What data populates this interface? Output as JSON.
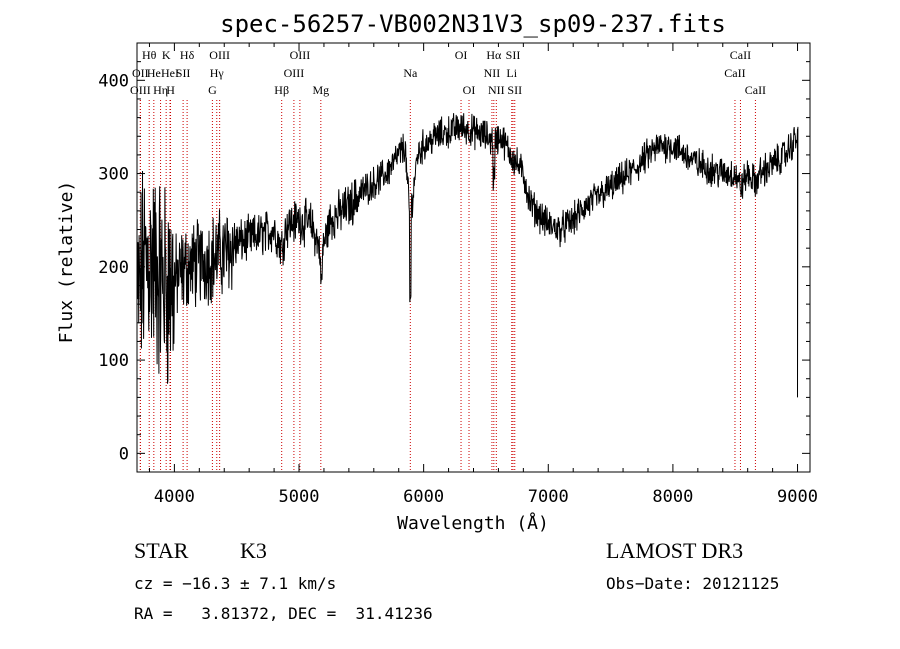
{
  "chart_data": {
    "type": "line",
    "title": "spec-56257-VB002N31V3_sp09-237.fits",
    "xlabel": "Wavelength (Å)",
    "ylabel": "Flux (relative)",
    "xlim": [
      3700,
      9100
    ],
    "ylim": [
      -20,
      440
    ],
    "xticks": [
      4000,
      5000,
      6000,
      7000,
      8000,
      9000
    ],
    "yticks": [
      0,
      100,
      200,
      300,
      400
    ],
    "xtick_labels": [
      "4000",
      "5000",
      "6000",
      "7000",
      "8000",
      "9000"
    ],
    "ytick_labels": [
      "0",
      "100",
      "200",
      "300",
      "400"
    ],
    "spectrum": {
      "x": [
        3700,
        3750,
        3800,
        3850,
        3900,
        3950,
        4000,
        4100,
        4200,
        4300,
        4400,
        4500,
        4600,
        4700,
        4800,
        4860,
        4900,
        5000,
        5100,
        5180,
        5250,
        5300,
        5400,
        5500,
        5600,
        5700,
        5750,
        5800,
        5850,
        5890,
        5950,
        6000,
        6100,
        6200,
        6300,
        6400,
        6500,
        6560,
        6620,
        6700,
        6800,
        6850,
        6900,
        7000,
        7100,
        7200,
        7300,
        7400,
        7500,
        7600,
        7700,
        7800,
        7900,
        8000,
        8100,
        8200,
        8300,
        8400,
        8500,
        8542,
        8600,
        8662,
        8700,
        8800,
        8900,
        8950,
        9000
      ],
      "y": [
        150,
        200,
        210,
        195,
        185,
        180,
        185,
        200,
        205,
        210,
        215,
        225,
        230,
        235,
        240,
        220,
        245,
        250,
        245,
        215,
        250,
        255,
        265,
        280,
        290,
        300,
        310,
        320,
        330,
        250,
        320,
        330,
        340,
        345,
        350,
        345,
        340,
        335,
        340,
        320,
        300,
        270,
        260,
        245,
        240,
        250,
        265,
        275,
        285,
        295,
        305,
        320,
        330,
        330,
        320,
        310,
        305,
        300,
        300,
        285,
        300,
        290,
        300,
        310,
        320,
        330,
        340
      ],
      "noise": "high below 4500 Å, moderate elsewhere"
    },
    "lines": [
      {
        "label": "Hθ",
        "x": 3798,
        "row": 0
      },
      {
        "label": "OII",
        "x": 3727,
        "row": 1
      },
      {
        "label": "OIII",
        "x": 3727,
        "row": 2
      },
      {
        "label": "He",
        "x": 3835,
        "row": 1
      },
      {
        "label": "Hη",
        "x": 3889,
        "row": 2
      },
      {
        "label": "K",
        "x": 3934,
        "row": 0
      },
      {
        "label": "H",
        "x": 3969,
        "row": 2
      },
      {
        "label": "HeI",
        "x": 3965,
        "row": 1
      },
      {
        "label": "Hδ",
        "x": 4102,
        "row": 0
      },
      {
        "label": "SII",
        "x": 4070,
        "row": 1
      },
      {
        "label": "OIII",
        "x": 4363,
        "row": 0
      },
      {
        "label": "Hγ",
        "x": 4340,
        "row": 1
      },
      {
        "label": "G",
        "x": 4305,
        "row": 2
      },
      {
        "label": "Hβ",
        "x": 4861,
        "row": 2
      },
      {
        "label": "OIII",
        "x": 5007,
        "row": 0
      },
      {
        "label": "OIII",
        "x": 4959,
        "row": 1
      },
      {
        "label": "Mg",
        "x": 5175,
        "row": 2
      },
      {
        "label": "Na",
        "x": 5893,
        "row": 1
      },
      {
        "label": "OI",
        "x": 6300,
        "row": 0
      },
      {
        "label": "OI",
        "x": 6364,
        "row": 2
      },
      {
        "label": "Hα",
        "x": 6563,
        "row": 0
      },
      {
        "label": "NII",
        "x": 6548,
        "row": 1
      },
      {
        "label": "NII",
        "x": 6583,
        "row": 2
      },
      {
        "label": "SII",
        "x": 6717,
        "row": 0
      },
      {
        "label": "Li",
        "x": 6707,
        "row": 1
      },
      {
        "label": "SII",
        "x": 6731,
        "row": 2
      },
      {
        "label": "CaII",
        "x": 8542,
        "row": 0
      },
      {
        "label": "CaII",
        "x": 8498,
        "row": 1
      },
      {
        "label": "CaII",
        "x": 8662,
        "row": 2
      }
    ]
  },
  "info": {
    "object_type": "STAR",
    "subclass": "K3",
    "survey": "LAMOST DR3",
    "redshift": "cz = −16.3 ± 7.1 km/s",
    "obs_date": "Obs−Date: 20121125",
    "radec": "RA =   3.81372, DEC =  31.41236"
  },
  "colors": {
    "line_marker": "#cc0000",
    "spectrum": "#000000",
    "axes": "#000000"
  }
}
